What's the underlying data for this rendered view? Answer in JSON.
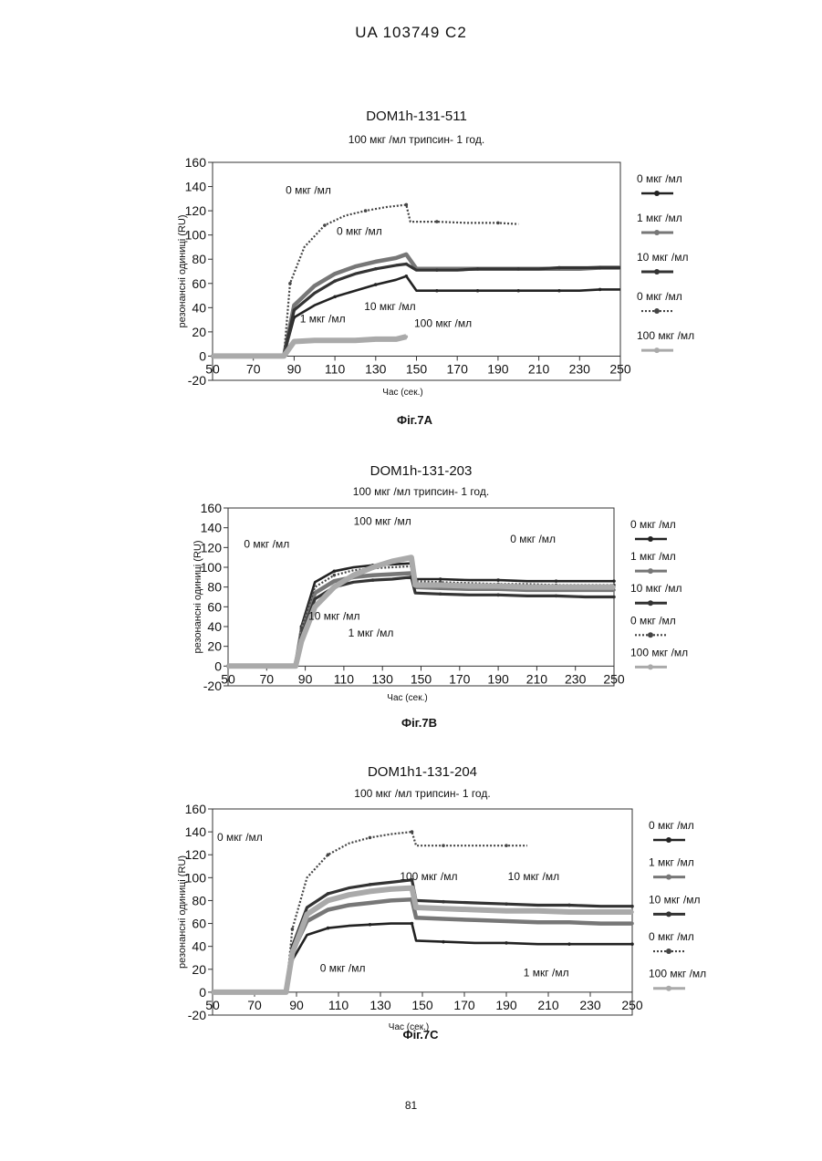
{
  "page": {
    "header": "UA   103749   C2",
    "page_number": "81"
  },
  "chart_data": [
    {
      "type": "line",
      "figure_label": "Фіг.7А",
      "title": "DOM1h-131-511",
      "subtitle": "100 мкг /мл  трипсин- 1 год.",
      "xlabel": "Час (сек.)",
      "ylabel": "резонансні одиниці (RU)",
      "xlim": [
        50,
        250
      ],
      "ylim": [
        -20,
        160
      ],
      "xticks": [
        "50",
        "70",
        "90",
        "110",
        "130",
        "150",
        "170",
        "190",
        "210",
        "230",
        "250"
      ],
      "yticks": [
        "-20",
        "0",
        "20",
        "40",
        "60",
        "80",
        "100",
        "120",
        "140",
        "160"
      ],
      "legend": [
        "0 мкг /мл",
        "1 мкг /мл",
        "10 мкг /мл",
        "0 мкг /мл",
        "100 мкг /мл"
      ],
      "annotations": [
        {
          "text": "0 мкг /мл",
          "x": 97,
          "y": 134
        },
        {
          "text": "0 мкг /мл",
          "x": 122,
          "y": 100
        },
        {
          "text": "10 мкг /мл",
          "x": 137,
          "y": 38
        },
        {
          "text": "1 мкг /мл",
          "x": 104,
          "y": 28
        },
        {
          "text": "100  мкг /мл",
          "x": 163,
          "y": 24
        }
      ],
      "series": [
        {
          "legend": "0 мкг /мл",
          "x": [
            50,
            85,
            90,
            100,
            110,
            120,
            130,
            140,
            145,
            150,
            160,
            170,
            180,
            190,
            200,
            210,
            220,
            230,
            240,
            250
          ],
          "y": [
            0,
            0,
            32,
            42,
            49,
            54,
            59,
            63,
            66,
            54,
            54,
            54,
            54,
            54,
            54,
            54,
            54,
            54,
            55,
            55
          ]
        },
        {
          "legend": "1 мкг /мл",
          "x": [
            50,
            85,
            90,
            100,
            110,
            120,
            130,
            140,
            145,
            150,
            160,
            170,
            180,
            190,
            200,
            210,
            220,
            230,
            240,
            250
          ],
          "y": [
            0,
            0,
            42,
            58,
            68,
            74,
            78,
            81,
            84,
            72,
            72,
            72,
            72,
            72,
            72,
            72,
            72,
            72,
            73,
            73
          ]
        },
        {
          "legend": "10 мкг /мл",
          "x": [
            50,
            85,
            90,
            100,
            110,
            120,
            130,
            140,
            145,
            150,
            160,
            170,
            180,
            190,
            200,
            210,
            220,
            230,
            240,
            250
          ],
          "y": [
            0,
            0,
            38,
            52,
            62,
            68,
            72,
            75,
            76,
            71,
            71,
            71,
            72,
            72,
            72,
            72,
            73,
            73,
            73,
            73
          ]
        },
        {
          "legend": "0 мкг /мл",
          "x": [
            50,
            85,
            88,
            95,
            105,
            115,
            125,
            135,
            145,
            147,
            160,
            175,
            190,
            200
          ],
          "y": [
            0,
            0,
            60,
            90,
            108,
            116,
            120,
            123,
            125,
            111,
            111,
            110,
            110,
            109
          ]
        },
        {
          "legend": "100 мкг /мл",
          "x": [
            50,
            85,
            90,
            100,
            110,
            120,
            130,
            140,
            145
          ],
          "y": [
            0,
            0,
            12,
            13,
            13,
            13,
            14,
            14,
            16
          ]
        }
      ]
    },
    {
      "type": "line",
      "figure_label": "Фіг.7В",
      "title": "DOM1h-131-203",
      "subtitle": "100 мкг /мл  трипсин- 1 год.",
      "xlabel": "Час (сек.)",
      "ylabel": "резонансні одиниці (RU)",
      "xlim": [
        50,
        250
      ],
      "ylim": [
        -20,
        160
      ],
      "xticks": [
        "50",
        "70",
        "90",
        "110",
        "130",
        "150",
        "170",
        "190",
        "210",
        "230",
        "250"
      ],
      "yticks": [
        "-20",
        "0",
        "20",
        "40",
        "60",
        "80",
        "100",
        "120",
        "140",
        "160"
      ],
      "legend": [
        "0 мкг /мл",
        "1 мкг /мл",
        "10 мкг /мл",
        "0 мкг /мл",
        "100 мкг /мл"
      ],
      "annotations": [
        {
          "text": "0 мкг /мл",
          "x": 70,
          "y": 120
        },
        {
          "text": "100 мкг /мл",
          "x": 130,
          "y": 143
        },
        {
          "text": "0 мкг /мл",
          "x": 208,
          "y": 125
        },
        {
          "text": "10 мкг /мл",
          "x": 105,
          "y": 47
        },
        {
          "text": "1 мкг /мл",
          "x": 124,
          "y": 30
        }
      ],
      "series": [
        {
          "legend": "0 мкг /мл",
          "x": [
            50,
            85,
            88,
            95,
            105,
            115,
            125,
            135,
            145,
            147,
            160,
            175,
            190,
            205,
            220,
            235,
            250
          ],
          "y": [
            0,
            0,
            40,
            85,
            96,
            100,
            102,
            103,
            104,
            88,
            88,
            87,
            87,
            86,
            86,
            86,
            86
          ]
        },
        {
          "legend": "1 мкг /мл",
          "x": [
            50,
            85,
            88,
            95,
            105,
            115,
            125,
            135,
            145,
            147,
            160,
            175,
            190,
            205,
            220,
            235,
            250
          ],
          "y": [
            0,
            0,
            35,
            74,
            86,
            90,
            92,
            93,
            94,
            80,
            79,
            78,
            78,
            77,
            77,
            77,
            77
          ]
        },
        {
          "legend": "10 мкг /мл",
          "x": [
            50,
            85,
            88,
            95,
            105,
            115,
            125,
            135,
            145,
            147,
            160,
            175,
            190,
            205,
            220,
            235,
            250
          ],
          "y": [
            0,
            0,
            30,
            68,
            80,
            85,
            87,
            88,
            90,
            74,
            73,
            72,
            72,
            71,
            71,
            70,
            70
          ]
        },
        {
          "legend": "0 мкг /мл",
          "x": [
            50,
            85,
            88,
            95,
            105,
            115,
            125,
            135,
            145,
            147,
            160,
            175,
            190,
            205,
            220,
            235,
            250
          ],
          "y": [
            0,
            0,
            38,
            80,
            92,
            97,
            99,
            100,
            101,
            86,
            85,
            84,
            83,
            83,
            82,
            82,
            82
          ]
        },
        {
          "legend": "100 мкг /мл",
          "x": [
            50,
            85,
            88,
            95,
            105,
            115,
            125,
            135,
            145,
            147,
            160,
            175,
            190,
            205,
            220,
            235,
            250
          ],
          "y": [
            0,
            0,
            25,
            60,
            80,
            92,
            100,
            106,
            110,
            82,
            82,
            81,
            81,
            80,
            80,
            80,
            80
          ]
        }
      ]
    },
    {
      "type": "line",
      "figure_label": "Фіг.7С",
      "title": "DOM1h1-131-204",
      "subtitle": "100 мкг /мл  трипсин- 1 год.",
      "xlabel": "Час (сек.)",
      "ylabel": "резонансні одиниці (RU)",
      "xlim": [
        50,
        250
      ],
      "ylim": [
        -20,
        160
      ],
      "xticks": [
        "50",
        "70",
        "90",
        "110",
        "130",
        "150",
        "170",
        "190",
        "210",
        "230",
        "250"
      ],
      "yticks": [
        "-20",
        "0",
        "20",
        "40",
        "60",
        "80",
        "100",
        "120",
        "140",
        "160"
      ],
      "legend": [
        "0 мкг /мл",
        "1 мкг /мл",
        "10 мкг /мл",
        "0 мкг /мл",
        "100 мкг /мл"
      ],
      "annotations": [
        {
          "text": "0 мкг /мл",
          "x": 63,
          "y": 132
        },
        {
          "text": "100 мкг /мл",
          "x": 153,
          "y": 98
        },
        {
          "text": "10 мкг /мл",
          "x": 203,
          "y": 98
        },
        {
          "text": "0 мкг /мл",
          "x": 112,
          "y": 18
        },
        {
          "text": "1 мкг /мл",
          "x": 209,
          "y": 14
        }
      ],
      "series": [
        {
          "legend": "0 мкг /мл",
          "x": [
            50,
            85,
            88,
            95,
            105,
            115,
            125,
            135,
            145,
            147,
            160,
            175,
            190,
            205,
            220,
            235,
            250
          ],
          "y": [
            0,
            0,
            28,
            50,
            56,
            58,
            59,
            60,
            60,
            45,
            44,
            43,
            43,
            42,
            42,
            42,
            42
          ]
        },
        {
          "legend": "1 мкг /мл",
          "x": [
            50,
            85,
            88,
            95,
            105,
            115,
            125,
            135,
            145,
            147,
            160,
            175,
            190,
            205,
            220,
            235,
            250
          ],
          "y": [
            0,
            0,
            35,
            62,
            72,
            76,
            78,
            80,
            81,
            65,
            64,
            63,
            62,
            61,
            61,
            60,
            60
          ]
        },
        {
          "legend": "10 мкг /мл",
          "x": [
            50,
            85,
            88,
            95,
            105,
            115,
            125,
            135,
            145,
            147,
            160,
            175,
            190,
            205,
            220,
            235,
            250
          ],
          "y": [
            0,
            0,
            40,
            74,
            86,
            91,
            94,
            96,
            98,
            80,
            79,
            78,
            77,
            76,
            76,
            75,
            75
          ]
        },
        {
          "legend": "0 мкг /мл",
          "x": [
            50,
            85,
            88,
            95,
            105,
            115,
            125,
            135,
            145,
            147,
            160,
            175,
            190,
            200
          ],
          "y": [
            0,
            0,
            55,
            100,
            120,
            130,
            135,
            138,
            140,
            128,
            128,
            128,
            128,
            128
          ]
        },
        {
          "legend": "100 мкг /мл",
          "x": [
            50,
            85,
            88,
            95,
            105,
            115,
            125,
            135,
            145,
            147,
            160,
            175,
            190,
            205,
            220,
            235,
            250
          ],
          "y": [
            0,
            0,
            34,
            68,
            80,
            85,
            88,
            90,
            91,
            74,
            73,
            72,
            71,
            71,
            70,
            70,
            70
          ]
        }
      ]
    }
  ]
}
